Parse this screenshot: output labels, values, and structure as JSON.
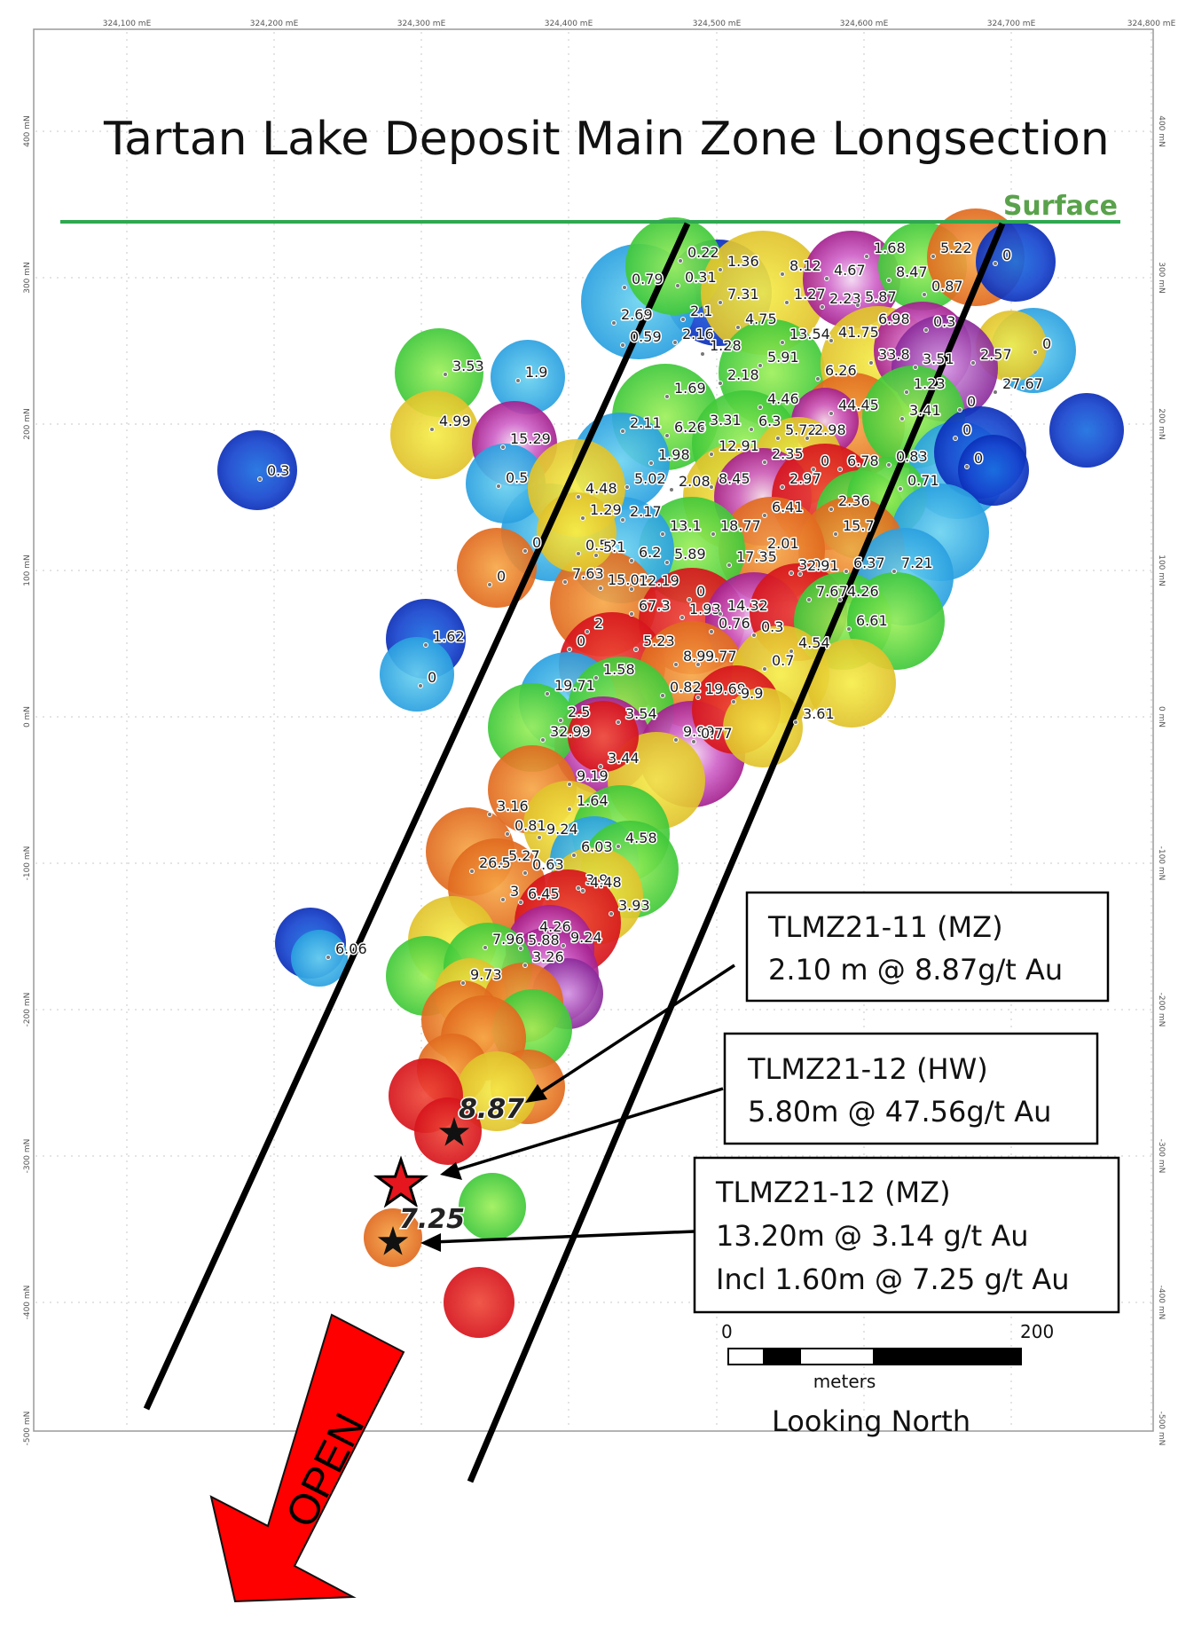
{
  "title": "Tartan Lake Deposit Main Zone Longsection",
  "surface_label": "Surface",
  "easting_ticks": [
    "324,100 mE",
    "324,200 mE",
    "324,300 mE",
    "324,400 mE",
    "324,500 mE",
    "324,600 mE",
    "324,700 mE",
    "324,800 mE"
  ],
  "northing_ticks": [
    "400 mN",
    "300 mN",
    "200 mN",
    "100 mN",
    "0 mN",
    "-100 mN",
    "-200 mN",
    "-300 mN",
    "-400 mN",
    "-500 mN"
  ],
  "callouts": [
    {
      "title": "TLMZ21-11 (MZ)",
      "lines": [
        "2.10 m @ 8.87g/t Au"
      ]
    },
    {
      "title": "TLMZ21-12 (HW)",
      "lines": [
        "5.80m @ 47.56g/t Au"
      ]
    },
    {
      "title": "TLMZ21-12 (MZ)",
      "lines": [
        "13.20m @ 3.14 g/t Au",
        "Incl 1.60m @ 7.25 g/t Au"
      ]
    }
  ],
  "highlight_grades": [
    "8.87",
    "7.25"
  ],
  "scale_bar": {
    "start": "0",
    "end": "200",
    "unit": "meters"
  },
  "view_label": "Looking North",
  "open_label": "OPEN",
  "colors": {
    "surface_line": "#2fa84f",
    "arrow": "#ff0000",
    "high_grade": "#e0a0e0"
  },
  "grades": [
    "0.22",
    "1.36",
    "8.12",
    "4.67",
    "1.68",
    "5.22",
    "0",
    "0.79",
    "0.31",
    "8.47",
    "7.31",
    "1.27",
    "2.23",
    "5.87",
    "0.87",
    "2.69",
    "2.1",
    "4.75",
    "6.98",
    "0.3",
    "0.59",
    "2.16",
    "13.54",
    "41.75",
    "1.28",
    "33.8",
    "2.57",
    "0",
    "5.91",
    "3.51",
    "6.26",
    "27.67",
    "3.53",
    "1.9",
    "2.18",
    "1.69",
    "1.23",
    "4.46",
    "44.45",
    "0",
    "4.99",
    "2.11",
    "6.26",
    "3.31",
    "6.3",
    "5.72",
    "2.98",
    "3.41",
    "0",
    "15.29",
    "1.98",
    "12.91",
    "2.35",
    "0",
    "0.3",
    "6.78",
    "0.83",
    "0",
    "0.5",
    "5.02",
    "2.08",
    "8.45",
    "2.97",
    "0.71",
    "4.48",
    "1.29",
    "2.17",
    "6.41",
    "2.36",
    "13.1",
    "18.77",
    "15.7",
    "0",
    "2.01",
    "0.52",
    "5.1",
    "6.2",
    "5.89",
    "17.35",
    "3.04",
    "2.91",
    "6.37",
    "7.21",
    "0",
    "7.63",
    "15.02",
    "12.19",
    "0",
    "7.67",
    "4.26",
    "67.3",
    "1.93",
    "14.32",
    "6.61",
    "2",
    "0.76",
    "0.3",
    "4.54",
    "1.62",
    "0",
    "5.23",
    "8.99",
    "9.77",
    "0.7",
    "1.58",
    "0",
    "19.71",
    "0.82",
    "19.69",
    "9.9",
    "2.5",
    "3.54",
    "3.61",
    "32.99",
    "9.99",
    "0.77",
    "3.44",
    "9.19",
    "1.64",
    "3.16",
    "0.81",
    "9.24",
    "4.58",
    "6.03",
    "5.27",
    "26.5",
    "0.63",
    "3.9",
    "4.48",
    "6.45",
    "3",
    "3.93",
    "6.06",
    "4.26",
    "7.96",
    "5.88",
    "9.24",
    "3.26",
    "9.73"
  ]
}
